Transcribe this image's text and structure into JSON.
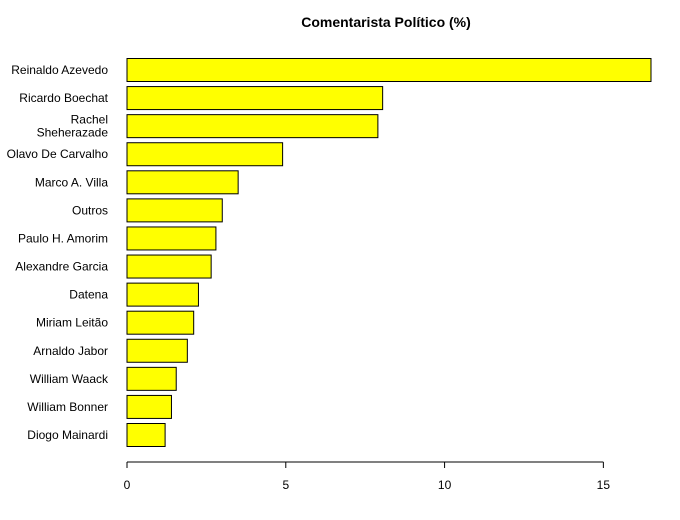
{
  "chart_data": {
    "type": "bar",
    "orientation": "horizontal",
    "title": "Comentarista Político (%)",
    "xlabel": "",
    "ylabel": "",
    "categories": [
      "Reinaldo Azevedo",
      "Ricardo Boechat",
      "Rachel\nSheherazade",
      "Olavo De Carvalho",
      "Marco A. Villa",
      "Outros",
      "Paulo H. Amorim",
      "Alexandre Garcia",
      "Datena",
      "Miriam Leitão",
      "Arnaldo Jabor",
      "William Waack",
      "William Bonner",
      "Diogo Mainardi"
    ],
    "values": [
      16.5,
      8.05,
      7.9,
      4.9,
      3.5,
      3.0,
      2.8,
      2.65,
      2.25,
      2.1,
      1.9,
      1.55,
      1.4,
      1.2
    ],
    "xlim": [
      0,
      16.5
    ],
    "xticks": [
      0,
      5,
      10,
      15
    ],
    "bar_color": "#ffff00",
    "bar_edge_color": "#000000",
    "grid": false
  }
}
